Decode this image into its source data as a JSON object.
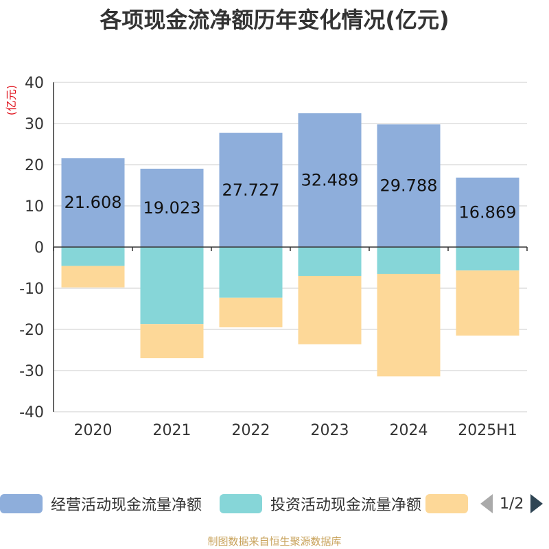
{
  "title": "各项现金流净额历年变化情况(亿元)",
  "source": "制图数据来自恒生聚源数据库",
  "chart_data": {
    "type": "bar",
    "stacked": true,
    "unit_label": "(亿元)",
    "categories": [
      "2020",
      "2021",
      "2022",
      "2023",
      "2024",
      "2025H1"
    ],
    "ylim": [
      -40,
      40
    ],
    "yticks": [
      40,
      30,
      20,
      10,
      0,
      -10,
      -20,
      -30,
      -40
    ],
    "grid": true,
    "legend_position": "bottom",
    "series": [
      {
        "name": "经营活动现金流量净额",
        "color": "#8eaedb",
        "values": [
          21.608,
          19.023,
          27.727,
          32.489,
          29.788,
          16.869
        ],
        "show_labels": true
      },
      {
        "name": "投资活动现金流量净额",
        "color": "#86d6d8",
        "values": [
          -4.6,
          -18.7,
          -12.3,
          -7.0,
          -6.5,
          -5.7
        ],
        "show_labels": false
      },
      {
        "name": "",
        "color": "#fdd898",
        "values": [
          -5.2,
          -8.3,
          -7.2,
          -16.6,
          -24.9,
          -15.8
        ],
        "show_labels": false
      }
    ]
  },
  "pager": {
    "text": "1/2"
  }
}
